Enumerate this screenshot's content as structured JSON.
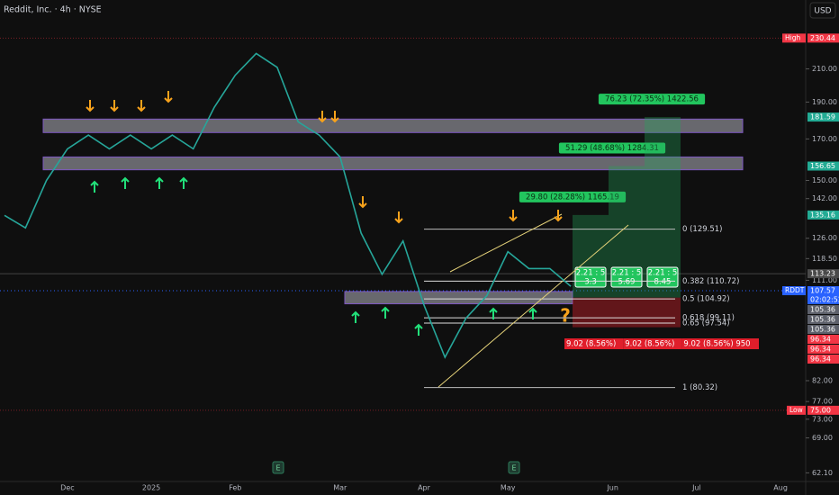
{
  "header": {
    "title": "Reddit, Inc. · 4h · NYSE",
    "currency": "USD"
  },
  "chart_data": {
    "type": "line",
    "categories": [
      null,
      null,
      null,
      "Dec",
      null,
      null,
      null,
      "2025",
      null,
      null,
      null,
      "Feb",
      null,
      null,
      null,
      null,
      "Mar",
      null,
      null,
      null,
      "Apr",
      null,
      null,
      null,
      "May",
      null,
      null,
      null,
      null,
      "Jun",
      null,
      null,
      null,
      "Jul",
      null,
      null,
      null,
      "Aug"
    ],
    "values": [
      135,
      130,
      150,
      165,
      172,
      165,
      172,
      165,
      172,
      165,
      187,
      206,
      220,
      211,
      179,
      172,
      161,
      128,
      113,
      125,
      103,
      88,
      99,
      106,
      121,
      115,
      115,
      109,
      null,
      null,
      null,
      null,
      null,
      null,
      null,
      null,
      null,
      null
    ],
    "color": "#26a69a",
    "log_scale": true,
    "ylim": [
      60.5,
      258.5
    ],
    "yticks": [
      {
        "value": 210,
        "label": "210.00"
      },
      {
        "value": 190,
        "label": "190.00"
      },
      {
        "value": 170,
        "label": "170.00"
      },
      {
        "value": 150,
        "label": "150.00"
      },
      {
        "value": 142,
        "label": "142.00"
      },
      {
        "value": 126,
        "label": "126.00"
      },
      {
        "value": 118.5,
        "label": "118.50"
      },
      {
        "value": 111,
        "label": "111.00"
      },
      {
        "value": 82,
        "label": "82.00"
      },
      {
        "value": 77,
        "label": "77.00"
      },
      {
        "value": 73,
        "label": "73.00"
      },
      {
        "value": 69,
        "label": "69.00"
      },
      {
        "value": 62.1,
        "label": "62.10"
      }
    ],
    "price_labels": [
      {
        "tag": "High",
        "value": 230.44,
        "label": "230.44",
        "color": "#f23645"
      },
      {
        "value": 181.59,
        "label": "181.59",
        "color": "#22ab94"
      },
      {
        "value": 156.65,
        "label": "156.65",
        "color": "#22ab94"
      },
      {
        "value": 135.16,
        "label": "135.16",
        "color": "#22ab94"
      },
      {
        "value": 113.23,
        "label": "113.23",
        "color": "#4a4a4a"
      },
      {
        "tag": "RDDT",
        "value": 107.57,
        "label": "107.57",
        "sub": "02:02:52",
        "color": "#2962ff"
      },
      {
        "value": 105.36,
        "label": "105.36",
        "color": "#5d606b"
      },
      {
        "value": 105.36,
        "label": "105.36",
        "color": "#5d606b"
      },
      {
        "value": 105.36,
        "label": "105.36",
        "color": "#5d606b"
      },
      {
        "value": 96.34,
        "label": "96.34",
        "color": "#f23645"
      },
      {
        "value": 96.34,
        "label": "96.34",
        "color": "#f23645"
      },
      {
        "value": 96.34,
        "label": "96.34",
        "color": "#f23645"
      },
      {
        "tag": "Low",
        "value": 75,
        "label": "75.00",
        "color": "#f23645"
      }
    ],
    "zones": [
      {
        "low": 173.3,
        "high": 180.5
      },
      {
        "low": 154.9,
        "high": 161
      },
      {
        "low": 103.4,
        "high": 107.3
      }
    ],
    "fib_levels": [
      {
        "label": "0 (129.51)",
        "value": 129.51
      },
      {
        "label": "0.382 (110.72)",
        "value": 110.72
      },
      {
        "label": "0.5 (104.92)",
        "value": 104.92
      },
      {
        "label": "0.618 (99.11)",
        "value": 99.11
      },
      {
        "label": "0.65 (97.54)",
        "value": 97.54
      },
      {
        "label": "1 (80.32)",
        "value": 80.32
      }
    ],
    "entry": 105.36,
    "stop": 96.34,
    "targets": [
      {
        "value": 135.16,
        "label": "29.80 (28.28%) 1165.19",
        "ratio": "2.21 : 5",
        "rr": "3.3",
        "risk": "9.02 (8.56%)"
      },
      {
        "value": 156.65,
        "label": "51.29 (48.68%) 1284.31",
        "ratio": "2.21 : 5",
        "rr": "5.69",
        "risk": "9.02 (8.56%)"
      },
      {
        "value": 181.59,
        "label": "76.23 (72.35%) 1422.56",
        "ratio": "2.21 : 5",
        "rr": "8.45",
        "risk": "9.02 (8.56%) 950"
      }
    ]
  }
}
